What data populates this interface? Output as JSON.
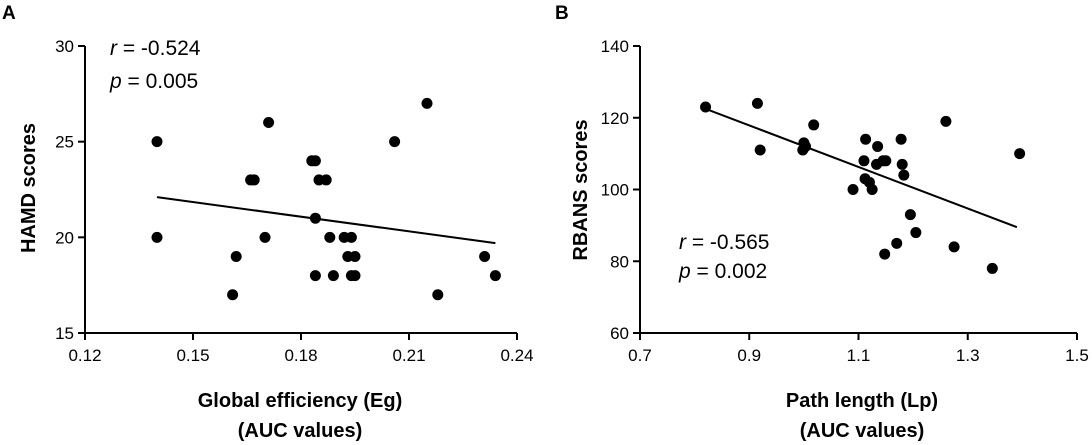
{
  "chart_data": [
    {
      "type": "scatter",
      "panel": "A",
      "xlabel": [
        "Global efficiency (Eg)",
        "(AUC values)"
      ],
      "ylabel": "HAMD scores",
      "xlim": [
        0.12,
        0.24
      ],
      "ylim": [
        15,
        30
      ],
      "xticks": [
        0.12,
        0.15,
        0.18,
        0.21,
        0.24
      ],
      "xtick_labels": [
        "0.12",
        "0.15",
        "0.18",
        "0.21",
        "0.24"
      ],
      "yticks": [
        15,
        20,
        25,
        30
      ],
      "ytick_labels": [
        "15",
        "20",
        "25",
        "30"
      ],
      "stat_r_label": "r",
      "stat_r_value": " = -0.524",
      "stat_p_label": "p",
      "stat_p_value": " = 0.005",
      "fit_line": {
        "x": [
          0.14,
          0.234
        ],
        "y": [
          22.1,
          19.7
        ]
      },
      "points": {
        "x": [
          0.14,
          0.14,
          0.161,
          0.162,
          0.166,
          0.167,
          0.17,
          0.171,
          0.183,
          0.184,
          0.184,
          0.184,
          0.185,
          0.187,
          0.188,
          0.189,
          0.192,
          0.193,
          0.194,
          0.194,
          0.195,
          0.195,
          0.206,
          0.215,
          0.218,
          0.231,
          0.234
        ],
        "y": [
          25,
          20,
          17,
          19,
          23,
          23,
          20,
          26,
          24,
          24,
          21,
          18,
          23,
          23,
          20,
          18,
          20,
          19,
          20,
          18,
          19,
          18,
          25,
          27,
          17,
          19,
          18
        ]
      }
    },
    {
      "type": "scatter",
      "panel": "B",
      "xlabel": [
        "Path length (Lp)",
        "(AUC values)"
      ],
      "ylabel": "RBANS scores",
      "xlim": [
        0.7,
        1.5
      ],
      "ylim": [
        60,
        140
      ],
      "xticks": [
        0.7,
        0.9,
        1.1,
        1.3,
        1.5
      ],
      "xtick_labels": [
        "0.7",
        "0.9",
        "1.1",
        "1.3",
        "1.5"
      ],
      "yticks": [
        60,
        80,
        100,
        120,
        140
      ],
      "ytick_labels": [
        "60",
        "80",
        "100",
        "120",
        "140"
      ],
      "stat_r_label": "r",
      "stat_r_value": " = -0.565",
      "stat_p_label": "p",
      "stat_p_value": " = 0.002",
      "fit_line": {
        "x": [
          0.82,
          1.39
        ],
        "y": [
          122.5,
          89.5
        ]
      },
      "points": {
        "x": [
          0.82,
          0.915,
          0.92,
          0.998,
          1.0,
          1.003,
          1.018,
          1.09,
          1.11,
          1.112,
          1.113,
          1.12,
          1.125,
          1.133,
          1.135,
          1.145,
          1.148,
          1.15,
          1.17,
          1.178,
          1.18,
          1.183,
          1.195,
          1.205,
          1.26,
          1.275,
          1.345,
          1.395
        ],
        "y": [
          123,
          124,
          111,
          111,
          113,
          112,
          118,
          100,
          108,
          103,
          114,
          102,
          100,
          107,
          112,
          108,
          82,
          108,
          85,
          114,
          107,
          104,
          93,
          88,
          119,
          84,
          78,
          110
        ]
      }
    }
  ]
}
